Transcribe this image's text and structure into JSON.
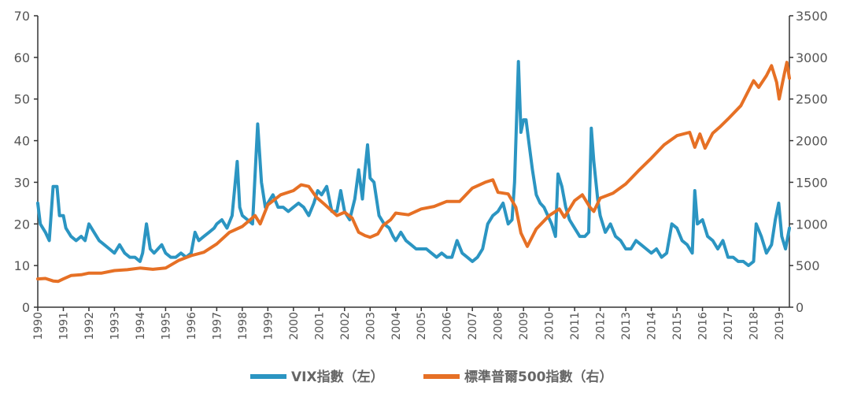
{
  "chart_data": {
    "type": "line",
    "x_range": [
      1990,
      2019.4
    ],
    "x_ticks": [
      "1990",
      "1991",
      "1992",
      "1993",
      "1994",
      "1995",
      "1996",
      "1997",
      "1998",
      "1999",
      "2000",
      "2001",
      "2002",
      "2003",
      "2004",
      "2005",
      "2006",
      "2007",
      "2008",
      "2009",
      "2010",
      "2011",
      "2012",
      "2013",
      "2014",
      "2015",
      "2016",
      "2017",
      "2018",
      "2019"
    ],
    "y_left": {
      "ylim": [
        0,
        70
      ],
      "ticks": [
        "0",
        "10",
        "20",
        "30",
        "40",
        "50",
        "60",
        "70"
      ]
    },
    "y_right": {
      "ylim": [
        0,
        3500
      ],
      "ticks": [
        "0",
        "500",
        "1000",
        "1500",
        "2000",
        "2500",
        "3000",
        "3500"
      ]
    },
    "legend_position": "bottom-center",
    "series": [
      {
        "name": "VIX指數（左）",
        "axis": "left",
        "color": "#2b95c2",
        "points": [
          [
            1990.0,
            25
          ],
          [
            1990.1,
            20
          ],
          [
            1990.3,
            18
          ],
          [
            1990.45,
            16
          ],
          [
            1990.6,
            29
          ],
          [
            1990.75,
            29
          ],
          [
            1990.85,
            22
          ],
          [
            1991.0,
            22
          ],
          [
            1991.1,
            19
          ],
          [
            1991.3,
            17
          ],
          [
            1991.5,
            16
          ],
          [
            1991.7,
            17
          ],
          [
            1991.85,
            16
          ],
          [
            1992.0,
            20
          ],
          [
            1992.2,
            18
          ],
          [
            1992.4,
            16
          ],
          [
            1992.6,
            15
          ],
          [
            1992.8,
            14
          ],
          [
            1993.0,
            13
          ],
          [
            1993.2,
            15
          ],
          [
            1993.4,
            13
          ],
          [
            1993.6,
            12
          ],
          [
            1993.8,
            12
          ],
          [
            1994.0,
            11
          ],
          [
            1994.1,
            13
          ],
          [
            1994.25,
            20
          ],
          [
            1994.4,
            14
          ],
          [
            1994.55,
            13
          ],
          [
            1994.7,
            14
          ],
          [
            1994.85,
            15
          ],
          [
            1995.0,
            13
          ],
          [
            1995.2,
            12
          ],
          [
            1995.4,
            12
          ],
          [
            1995.6,
            13
          ],
          [
            1995.8,
            12
          ],
          [
            1996.0,
            13
          ],
          [
            1996.15,
            18
          ],
          [
            1996.3,
            16
          ],
          [
            1996.5,
            17
          ],
          [
            1996.7,
            18
          ],
          [
            1996.9,
            19
          ],
          [
            1997.0,
            20
          ],
          [
            1997.2,
            21
          ],
          [
            1997.4,
            19
          ],
          [
            1997.6,
            22
          ],
          [
            1997.8,
            35
          ],
          [
            1997.9,
            24
          ],
          [
            1998.0,
            22
          ],
          [
            1998.2,
            21
          ],
          [
            1998.4,
            20
          ],
          [
            1998.6,
            44
          ],
          [
            1998.75,
            30
          ],
          [
            1998.9,
            24
          ],
          [
            1999.0,
            25
          ],
          [
            1999.2,
            27
          ],
          [
            1999.4,
            24
          ],
          [
            1999.6,
            24
          ],
          [
            1999.8,
            23
          ],
          [
            2000.0,
            24
          ],
          [
            2000.2,
            25
          ],
          [
            2000.4,
            24
          ],
          [
            2000.6,
            22
          ],
          [
            2000.8,
            25
          ],
          [
            2000.95,
            28
          ],
          [
            2001.1,
            27
          ],
          [
            2001.3,
            29
          ],
          [
            2001.5,
            23
          ],
          [
            2001.7,
            23
          ],
          [
            2001.85,
            28
          ],
          [
            2002.0,
            23
          ],
          [
            2002.2,
            21
          ],
          [
            2002.4,
            26
          ],
          [
            2002.55,
            33
          ],
          [
            2002.7,
            26
          ],
          [
            2002.8,
            33
          ],
          [
            2002.9,
            39
          ],
          [
            2003.0,
            31
          ],
          [
            2003.15,
            30
          ],
          [
            2003.35,
            22
          ],
          [
            2003.55,
            20
          ],
          [
            2003.75,
            19
          ],
          [
            2003.9,
            17
          ],
          [
            2004.0,
            16
          ],
          [
            2004.2,
            18
          ],
          [
            2004.4,
            16
          ],
          [
            2004.6,
            15
          ],
          [
            2004.8,
            14
          ],
          [
            2005.0,
            14
          ],
          [
            2005.2,
            14
          ],
          [
            2005.4,
            13
          ],
          [
            2005.6,
            12
          ],
          [
            2005.8,
            13
          ],
          [
            2006.0,
            12
          ],
          [
            2006.2,
            12
          ],
          [
            2006.4,
            16
          ],
          [
            2006.6,
            13
          ],
          [
            2006.8,
            12
          ],
          [
            2007.0,
            11
          ],
          [
            2007.2,
            12
          ],
          [
            2007.4,
            14
          ],
          [
            2007.6,
            20
          ],
          [
            2007.8,
            22
          ],
          [
            2008.0,
            23
          ],
          [
            2008.2,
            25
          ],
          [
            2008.4,
            20
          ],
          [
            2008.55,
            21
          ],
          [
            2008.65,
            30
          ],
          [
            2008.8,
            59
          ],
          [
            2008.9,
            42
          ],
          [
            2009.0,
            45
          ],
          [
            2009.1,
            45
          ],
          [
            2009.2,
            40
          ],
          [
            2009.35,
            33
          ],
          [
            2009.5,
            27
          ],
          [
            2009.65,
            25
          ],
          [
            2009.8,
            24
          ],
          [
            2009.95,
            22
          ],
          [
            2010.1,
            20
          ],
          [
            2010.25,
            17
          ],
          [
            2010.35,
            32
          ],
          [
            2010.5,
            29
          ],
          [
            2010.65,
            24
          ],
          [
            2010.8,
            21
          ],
          [
            2011.0,
            19
          ],
          [
            2011.2,
            17
          ],
          [
            2011.4,
            17
          ],
          [
            2011.55,
            18
          ],
          [
            2011.65,
            43
          ],
          [
            2011.75,
            35
          ],
          [
            2011.9,
            26
          ],
          [
            2012.0,
            22
          ],
          [
            2012.2,
            18
          ],
          [
            2012.4,
            20
          ],
          [
            2012.6,
            17
          ],
          [
            2012.8,
            16
          ],
          [
            2013.0,
            14
          ],
          [
            2013.2,
            14
          ],
          [
            2013.4,
            16
          ],
          [
            2013.6,
            15
          ],
          [
            2013.8,
            14
          ],
          [
            2014.0,
            13
          ],
          [
            2014.2,
            14
          ],
          [
            2014.4,
            12
          ],
          [
            2014.6,
            13
          ],
          [
            2014.8,
            20
          ],
          [
            2015.0,
            19
          ],
          [
            2015.2,
            16
          ],
          [
            2015.4,
            15
          ],
          [
            2015.6,
            13
          ],
          [
            2015.7,
            28
          ],
          [
            2015.8,
            20
          ],
          [
            2016.0,
            21
          ],
          [
            2016.2,
            17
          ],
          [
            2016.4,
            16
          ],
          [
            2016.6,
            14
          ],
          [
            2016.8,
            16
          ],
          [
            2017.0,
            12
          ],
          [
            2017.2,
            12
          ],
          [
            2017.4,
            11
          ],
          [
            2017.6,
            11
          ],
          [
            2017.8,
            10
          ],
          [
            2018.0,
            11
          ],
          [
            2018.1,
            20
          ],
          [
            2018.3,
            17
          ],
          [
            2018.5,
            13
          ],
          [
            2018.7,
            15
          ],
          [
            2018.85,
            21
          ],
          [
            2018.98,
            25
          ],
          [
            2019.1,
            17
          ],
          [
            2019.25,
            14
          ],
          [
            2019.4,
            19
          ]
        ]
      },
      {
        "name": "標準普爾500指數（右）",
        "axis": "right",
        "color": "#e67025",
        "points": [
          [
            1990.0,
            340
          ],
          [
            1990.3,
            345
          ],
          [
            1990.6,
            315
          ],
          [
            1990.8,
            310
          ],
          [
            1991.0,
            340
          ],
          [
            1991.3,
            380
          ],
          [
            1991.7,
            390
          ],
          [
            1992.0,
            410
          ],
          [
            1992.5,
            410
          ],
          [
            1993.0,
            440
          ],
          [
            1993.5,
            450
          ],
          [
            1994.0,
            470
          ],
          [
            1994.5,
            455
          ],
          [
            1995.0,
            470
          ],
          [
            1995.5,
            560
          ],
          [
            1996.0,
            620
          ],
          [
            1996.5,
            660
          ],
          [
            1997.0,
            760
          ],
          [
            1997.5,
            900
          ],
          [
            1998.0,
            970
          ],
          [
            1998.5,
            1100
          ],
          [
            1998.7,
            1000
          ],
          [
            1999.0,
            1230
          ],
          [
            1999.5,
            1350
          ],
          [
            2000.0,
            1400
          ],
          [
            2000.3,
            1470
          ],
          [
            2000.6,
            1450
          ],
          [
            2000.9,
            1320
          ],
          [
            2001.2,
            1240
          ],
          [
            2001.7,
            1100
          ],
          [
            2002.0,
            1140
          ],
          [
            2002.3,
            1070
          ],
          [
            2002.55,
            900
          ],
          [
            2002.8,
            860
          ],
          [
            2003.0,
            840
          ],
          [
            2003.3,
            880
          ],
          [
            2003.5,
            980
          ],
          [
            2003.8,
            1050
          ],
          [
            2004.0,
            1130
          ],
          [
            2004.5,
            1110
          ],
          [
            2005.0,
            1180
          ],
          [
            2005.5,
            1210
          ],
          [
            2006.0,
            1270
          ],
          [
            2006.5,
            1270
          ],
          [
            2007.0,
            1430
          ],
          [
            2007.5,
            1500
          ],
          [
            2007.8,
            1530
          ],
          [
            2008.0,
            1380
          ],
          [
            2008.4,
            1360
          ],
          [
            2008.7,
            1200
          ],
          [
            2008.9,
            890
          ],
          [
            2009.15,
            730
          ],
          [
            2009.5,
            940
          ],
          [
            2010.0,
            1100
          ],
          [
            2010.4,
            1180
          ],
          [
            2010.6,
            1080
          ],
          [
            2011.0,
            1280
          ],
          [
            2011.3,
            1350
          ],
          [
            2011.6,
            1200
          ],
          [
            2011.75,
            1150
          ],
          [
            2012.0,
            1310
          ],
          [
            2012.5,
            1370
          ],
          [
            2013.0,
            1480
          ],
          [
            2013.5,
            1640
          ],
          [
            2014.0,
            1790
          ],
          [
            2014.5,
            1950
          ],
          [
            2015.0,
            2060
          ],
          [
            2015.5,
            2100
          ],
          [
            2015.7,
            1920
          ],
          [
            2015.9,
            2080
          ],
          [
            2016.1,
            1910
          ],
          [
            2016.4,
            2090
          ],
          [
            2016.7,
            2170
          ],
          [
            2017.0,
            2260
          ],
          [
            2017.5,
            2420
          ],
          [
            2018.0,
            2720
          ],
          [
            2018.2,
            2640
          ],
          [
            2018.5,
            2780
          ],
          [
            2018.7,
            2900
          ],
          [
            2018.9,
            2700
          ],
          [
            2019.0,
            2500
          ],
          [
            2019.2,
            2800
          ],
          [
            2019.3,
            2940
          ],
          [
            2019.4,
            2750
          ]
        ]
      }
    ]
  }
}
